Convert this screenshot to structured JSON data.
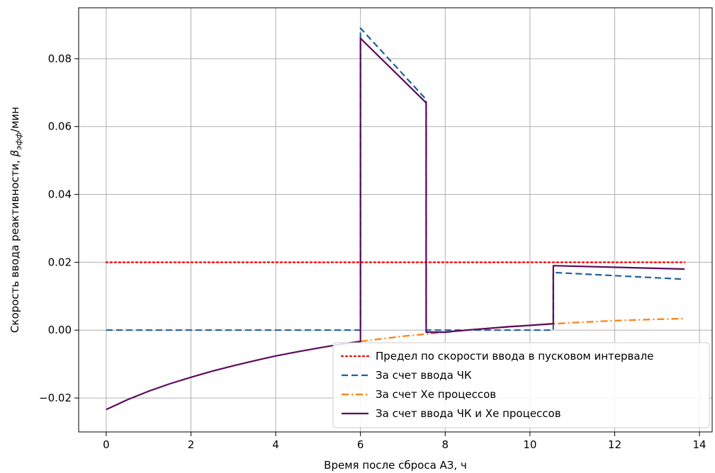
{
  "chart_data": {
    "type": "line",
    "xlabel": "Время после сброса АЗ, ч",
    "ylabel": "Скорость ввода реактивности, ",
    "ylabel_math": "β",
    "ylabel_math_sub": "эфф",
    "ylabel_unit": "/мин",
    "xlim": [
      -0.65,
      14.3
    ],
    "ylim": [
      -0.03,
      0.095
    ],
    "xticks": [
      0,
      2,
      4,
      6,
      8,
      10,
      12,
      14
    ],
    "xtick_labels": [
      "0",
      "2",
      "4",
      "6",
      "8",
      "10",
      "12",
      "14"
    ],
    "yticks": [
      -0.02,
      0.0,
      0.02,
      0.04,
      0.06,
      0.08
    ],
    "ytick_labels": [
      "−0.02",
      "0.00",
      "0.02",
      "0.04",
      "0.06",
      "0.08"
    ],
    "grid": true,
    "legend_position": "lower-right",
    "series": [
      {
        "name": "Предел по скорости ввода в пусковом интервале",
        "color": "#ff0000",
        "style": "dotted",
        "x": [
          0,
          13.65
        ],
        "y": [
          0.02,
          0.02
        ]
      },
      {
        "name": "За счет ввода ЧК",
        "color": "#1f5fa0",
        "style": "dashed",
        "x": [
          0,
          6.0,
          6.0,
          7.55,
          7.55,
          10.55,
          10.55,
          13.65
        ],
        "y": [
          0.0,
          0.0,
          0.089,
          0.068,
          0.0,
          0.0,
          0.017,
          0.015
        ]
      },
      {
        "name": "За счет Хе процессов",
        "color": "#ff7f0e",
        "style": "dashdot",
        "x": [
          6.0,
          7.0,
          8.0,
          9.0,
          10.0,
          11.0,
          12.0,
          13.0,
          13.65
        ],
        "y": [
          -0.0033,
          -0.0018,
          -0.0006,
          0.0005,
          0.0014,
          0.0022,
          0.0028,
          0.0032,
          0.0034
        ]
      },
      {
        "name": "За счет ввода ЧК и Хе процессов",
        "color": "#5b0a5e",
        "style": "solid",
        "x": [
          0,
          0.5,
          1,
          1.5,
          2,
          2.5,
          3,
          3.5,
          4,
          4.5,
          5,
          5.5,
          6.0,
          6.0,
          7.55,
          7.55,
          8.0,
          8.5,
          9.0,
          9.5,
          10.0,
          10.55,
          10.55,
          13.65
        ],
        "y": [
          -0.0234,
          -0.0205,
          -0.018,
          -0.0158,
          -0.0139,
          -0.0121,
          -0.0105,
          -0.009,
          -0.0076,
          -0.0064,
          -0.0053,
          -0.0042,
          -0.0033,
          0.086,
          0.067,
          -0.0006,
          -0.0006,
          0.0,
          0.0005,
          0.001,
          0.0014,
          0.0019,
          0.019,
          0.018
        ]
      }
    ]
  }
}
